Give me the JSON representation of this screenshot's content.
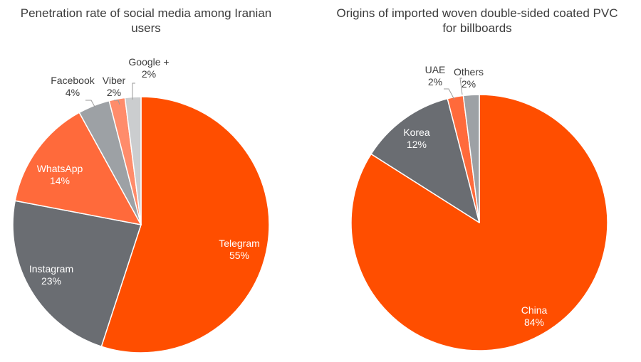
{
  "chart_data": [
    {
      "type": "pie",
      "title": "Penetration rate of social media among Iranian users",
      "slices": [
        {
          "label": "Telegram",
          "value": 55,
          "value_label": "55%",
          "color": "#ff4e00"
        },
        {
          "label": "Instagram",
          "value": 23,
          "value_label": "23%",
          "color": "#6a6d72"
        },
        {
          "label": "WhatsApp",
          "value": 14,
          "value_label": "14%",
          "color": "#ff6a3b"
        },
        {
          "label": "Facebook",
          "value": 4,
          "value_label": "4%",
          "color": "#9da1a5"
        },
        {
          "label": "Viber",
          "value": 2,
          "value_label": "2%",
          "color": "#ff8c6b"
        },
        {
          "label": "Google +",
          "value": 2,
          "value_label": "2%",
          "color": "#cbcdcf"
        }
      ]
    },
    {
      "type": "pie",
      "title": "Origins of imported woven double-sided coated PVC for billboards",
      "slices": [
        {
          "label": "China",
          "value": 84,
          "value_label": "84%",
          "color": "#ff4e00"
        },
        {
          "label": "Korea",
          "value": 12,
          "value_label": "12%",
          "color": "#6a6d72"
        },
        {
          "label": "UAE",
          "value": 2,
          "value_label": "2%",
          "color": "#ff6a3b"
        },
        {
          "label": "Others",
          "value": 2,
          "value_label": "2%",
          "color": "#9da1a5"
        }
      ]
    }
  ]
}
